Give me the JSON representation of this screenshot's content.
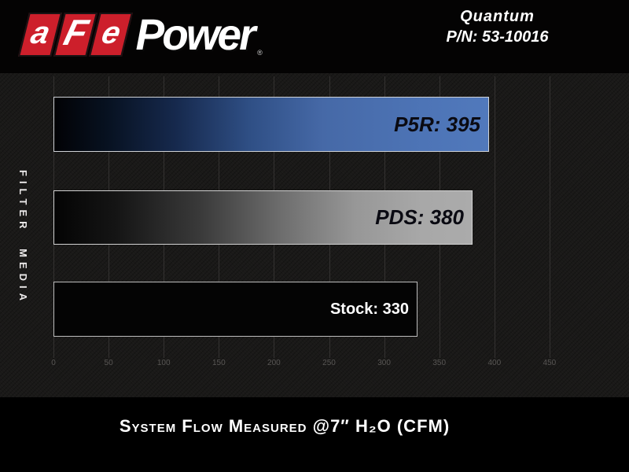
{
  "brand": {
    "logo_blocks": [
      "a",
      "F",
      "e"
    ],
    "logo_text": "Power",
    "registered_mark": "®",
    "accent_red": "#cd1f2b"
  },
  "product": {
    "name": "Quantum",
    "part_number": "P/N: 53-10016"
  },
  "chart_data": {
    "type": "bar",
    "orientation": "horizontal",
    "title": "System Flow Measured @7″ H₂O (CFM)",
    "xlabel": "",
    "ylabel": "FILTER MEDIA",
    "xlim": [
      0,
      500
    ],
    "grid": true,
    "legend_position": "none",
    "x_ticks": [
      0,
      50,
      100,
      150,
      200,
      250,
      300,
      350,
      400,
      450
    ],
    "categories": [
      "P5R",
      "PDS",
      "Stock"
    ],
    "values": [
      395,
      380,
      330
    ],
    "bars": [
      {
        "name": "P5R",
        "value": 395,
        "label": "P5R: 395",
        "style": "blue-gradient",
        "color": "#4d74b6"
      },
      {
        "name": "PDS",
        "value": 380,
        "label": "PDS: 380",
        "style": "silver-gradient",
        "color": "#a9a9a9"
      },
      {
        "name": "Stock",
        "value": 330,
        "label": "Stock: 330",
        "style": "black",
        "color": "#040404"
      }
    ]
  }
}
